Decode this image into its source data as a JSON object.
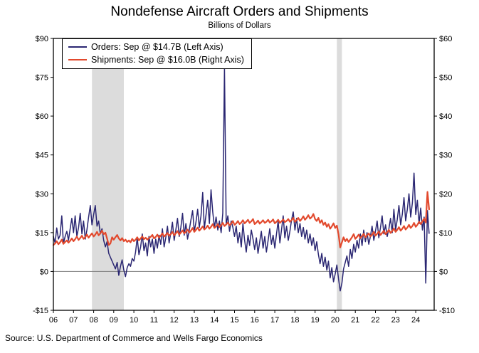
{
  "header": {
    "title": "Nondefense Aircraft Orders and Shipments",
    "subtitle": "Billions of Dollars"
  },
  "footer": {
    "source": "Source: U.S. Department of Commerce and Wells Fargo Economics"
  },
  "legend": [
    {
      "label": "Orders: Sep @ $14.7B (Left Axis)",
      "color": "#2a2672"
    },
    {
      "label": "Shipments: Sep @ $16.0B (Right Axis)",
      "color": "#e2492d"
    }
  ],
  "chart_data": {
    "type": "line",
    "title": "Nondefense Aircraft Orders and Shipments",
    "subtitle": "Billions of Dollars",
    "x_start": "2006-01",
    "x_end": "2024-09",
    "x_frequency": "monthly",
    "x_domain_months": 227,
    "grid": "off",
    "legend_position": "top-left-inside",
    "colors": {
      "recession": "#dcdcdc",
      "zero_line": "#7f7f7f",
      "frame": "#000000"
    },
    "left_axis": {
      "ylim": [
        -15,
        90
      ],
      "tick_values": [
        90,
        75,
        60,
        45,
        30,
        15,
        0,
        -15
      ],
      "tick_labels": [
        "$90",
        "$75",
        "$60",
        "$45",
        "$30",
        "$15",
        "$0",
        "-$15"
      ]
    },
    "right_axis": {
      "ylim": [
        -10,
        60
      ],
      "tick_values": [
        60,
        50,
        40,
        30,
        20,
        10,
        0,
        -10
      ],
      "tick_labels": [
        "$60",
        "$50",
        "$40",
        "$30",
        "$20",
        "$10",
        "$0",
        "-$10"
      ]
    },
    "x_ticks": [
      {
        "month": 0,
        "label": "06"
      },
      {
        "month": 12,
        "label": "07"
      },
      {
        "month": 24,
        "label": "08"
      },
      {
        "month": 36,
        "label": "09"
      },
      {
        "month": 48,
        "label": "10"
      },
      {
        "month": 60,
        "label": "11"
      },
      {
        "month": 72,
        "label": "12"
      },
      {
        "month": 84,
        "label": "13"
      },
      {
        "month": 96,
        "label": "14"
      },
      {
        "month": 108,
        "label": "15"
      },
      {
        "month": 120,
        "label": "16"
      },
      {
        "month": 132,
        "label": "17"
      },
      {
        "month": 144,
        "label": "18"
      },
      {
        "month": 156,
        "label": "19"
      },
      {
        "month": 168,
        "label": "20"
      },
      {
        "month": 180,
        "label": "21"
      },
      {
        "month": 192,
        "label": "22"
      },
      {
        "month": 204,
        "label": "23"
      },
      {
        "month": 216,
        "label": "24"
      }
    ],
    "recession_bands": [
      {
        "from_month": 23,
        "to_month": 42
      },
      {
        "from_month": 169,
        "to_month": 172
      }
    ],
    "series": [
      {
        "name": "Orders",
        "axis": "left",
        "color": "#2a2672",
        "width": 1.5,
        "latest_label": "Sep @ $14.7B",
        "values": [
          13.5,
          11.0,
          16.8,
          12.5,
          14.0,
          21.5,
          10.8,
          13.5,
          15.5,
          12.0,
          16.5,
          20.5,
          15.0,
          21.5,
          13.5,
          17.0,
          22.5,
          14.5,
          19.5,
          12.5,
          16.0,
          21.0,
          25.5,
          18.0,
          22.0,
          25.5,
          17.5,
          19.5,
          14.5,
          16.5,
          12.0,
          9.5,
          11.5,
          7.0,
          5.5,
          4.0,
          2.5,
          1.0,
          3.5,
          -1.5,
          2.0,
          4.5,
          0.5,
          -2.0,
          1.5,
          3.0,
          2.0,
          5.0,
          4.0,
          7.5,
          13.0,
          6.5,
          9.5,
          14.5,
          8.0,
          11.0,
          6.0,
          13.5,
          9.5,
          12.5,
          7.0,
          12.5,
          9.0,
          14.0,
          10.5,
          16.5,
          9.5,
          13.0,
          17.5,
          11.0,
          15.0,
          19.0,
          12.0,
          16.0,
          20.5,
          13.5,
          17.0,
          22.5,
          14.0,
          18.5,
          12.5,
          16.0,
          20.0,
          23.5,
          15.5,
          19.0,
          24.0,
          17.0,
          21.5,
          30.5,
          16.5,
          22.0,
          27.5,
          18.5,
          31.5,
          23.0,
          17.0,
          21.0,
          16.0,
          19.5,
          15.0,
          22.5,
          78.5,
          18.0,
          21.5,
          15.5,
          19.5,
          17.0,
          13.5,
          17.5,
          11.0,
          15.0,
          9.5,
          18.5,
          12.0,
          7.5,
          14.0,
          10.0,
          16.0,
          12.5,
          8.5,
          13.0,
          7.0,
          11.5,
          15.5,
          9.0,
          13.5,
          7.5,
          12.0,
          16.5,
          10.5,
          14.0,
          9.0,
          14.5,
          19.5,
          11.0,
          16.0,
          21.5,
          13.0,
          17.5,
          12.0,
          15.5,
          20.0,
          23.0,
          16.0,
          20.5,
          15.0,
          18.5,
          13.5,
          17.0,
          12.5,
          16.0,
          11.0,
          14.5,
          10.0,
          13.0,
          8.0,
          11.5,
          6.5,
          3.0,
          7.0,
          2.0,
          5.5,
          0.5,
          4.0,
          -2.5,
          1.5,
          -4.0,
          -1.0,
          2.5,
          -3.0,
          -7.5,
          -4.5,
          1.0,
          3.5,
          6.0,
          2.0,
          8.5,
          5.0,
          10.5,
          7.5,
          12.0,
          9.0,
          14.5,
          10.0,
          16.0,
          11.5,
          15.0,
          10.5,
          13.5,
          17.5,
          12.0,
          15.5,
          19.5,
          13.0,
          17.0,
          21.5,
          14.5,
          18.0,
          13.5,
          16.5,
          20.5,
          15.0,
          24.0,
          16.0,
          20.0,
          25.5,
          18.0,
          22.0,
          28.5,
          19.5,
          24.0,
          30.0,
          21.0,
          26.5,
          38.0,
          22.0,
          27.5,
          18.5,
          24.5,
          16.0,
          21.0,
          -4.5,
          23.5,
          14.7
        ]
      },
      {
        "name": "Shipments",
        "axis": "right",
        "color": "#e2492d",
        "width": 2.2,
        "latest_label": "Sep @ $16.0B",
        "values": [
          6.8,
          7.2,
          7.8,
          7.0,
          7.5,
          8.2,
          7.1,
          7.6,
          8.0,
          7.4,
          7.9,
          8.5,
          7.8,
          8.3,
          9.0,
          8.1,
          8.6,
          9.2,
          8.4,
          8.8,
          9.5,
          8.7,
          9.3,
          9.8,
          9.0,
          9.5,
          10.2,
          9.3,
          9.8,
          10.5,
          9.6,
          10.0,
          8.5,
          6.8,
          7.2,
          8.8,
          8.2,
          8.8,
          9.4,
          8.5,
          8.0,
          8.6,
          7.8,
          8.2,
          7.6,
          8.0,
          7.5,
          8.4,
          7.8,
          8.2,
          8.8,
          8.0,
          8.5,
          9.0,
          8.3,
          8.7,
          8.2,
          8.6,
          8.9,
          9.4,
          8.5,
          8.9,
          9.5,
          8.7,
          9.2,
          9.8,
          9.0,
          9.4,
          9.9,
          9.2,
          9.6,
          10.2,
          9.3,
          9.8,
          10.4,
          9.5,
          10.0,
          10.6,
          9.8,
          10.2,
          10.8,
          10.0,
          10.5,
          11.2,
          10.2,
          10.7,
          11.3,
          10.5,
          11.0,
          11.6,
          10.8,
          11.2,
          11.8,
          11.0,
          11.5,
          12.2,
          11.2,
          11.6,
          12.2,
          11.4,
          11.9,
          12.5,
          11.7,
          12.1,
          12.6,
          11.9,
          12.3,
          13.0,
          12.0,
          12.4,
          13.0,
          12.2,
          12.6,
          13.2,
          12.4,
          12.8,
          13.3,
          12.5,
          12.9,
          13.5,
          12.2,
          12.6,
          13.1,
          12.3,
          12.7,
          13.2,
          12.5,
          12.8,
          13.3,
          12.6,
          12.9,
          13.4,
          12.4,
          12.8,
          13.3,
          12.5,
          12.9,
          13.4,
          12.7,
          13.0,
          13.5,
          12.8,
          13.2,
          13.8,
          12.8,
          13.2,
          13.8,
          13.0,
          13.5,
          14.2,
          13.3,
          13.8,
          14.5,
          13.6,
          14.0,
          14.8,
          13.5,
          13.0,
          13.8,
          12.5,
          13.2,
          12.0,
          12.6,
          11.5,
          12.2,
          11.0,
          11.6,
          12.4,
          11.2,
          11.8,
          9.5,
          6.2,
          7.5,
          8.8,
          7.8,
          8.4,
          7.6,
          8.2,
          8.8,
          9.6,
          8.4,
          8.9,
          9.5,
          8.6,
          9.1,
          9.7,
          8.8,
          9.3,
          9.8,
          9.0,
          9.5,
          10.2,
          9.2,
          9.7,
          10.3,
          9.4,
          9.9,
          10.5,
          9.6,
          10.1,
          10.7,
          9.9,
          10.4,
          11.1,
          10.2,
          10.7,
          11.4,
          10.5,
          11.0,
          11.7,
          10.8,
          11.3,
          12.0,
          11.2,
          11.7,
          12.5,
          11.5,
          12.0,
          12.8,
          12.2,
          12.9,
          13.6,
          12.6,
          20.5,
          16.0
        ]
      }
    ]
  }
}
